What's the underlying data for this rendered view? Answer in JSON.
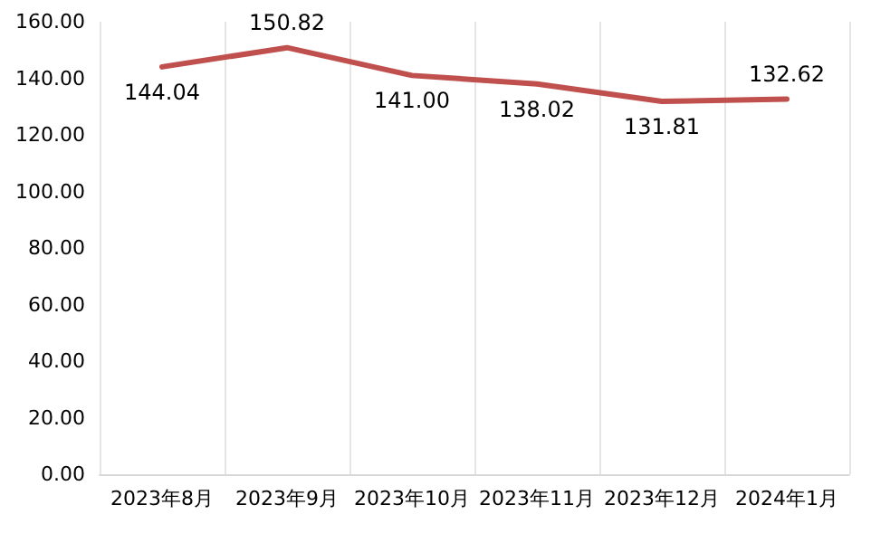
{
  "chart_data": {
    "type": "line",
    "categories": [
      "2023年8月",
      "2023年9月",
      "2023年10月",
      "2023年11月",
      "2023年12月",
      "2024年1月"
    ],
    "series": [
      {
        "color": "#c0504d",
        "values": [
          144.04,
          150.82,
          141.0,
          138.02,
          131.81,
          132.62
        ],
        "value_labels": [
          "144.04",
          "150.82",
          "141.00",
          "138.02",
          "131.81",
          "132.62"
        ]
      }
    ],
    "ylim": [
      0,
      160
    ],
    "yticks": [
      {
        "value": 0,
        "label": "0.00"
      },
      {
        "value": 20,
        "label": "20.00"
      },
      {
        "value": 40,
        "label": "40.00"
      },
      {
        "value": 60,
        "label": "60.00"
      },
      {
        "value": 80,
        "label": "80.00"
      },
      {
        "value": 100,
        "label": "100.00"
      },
      {
        "value": 120,
        "label": "120.00"
      },
      {
        "value": 140,
        "label": "140.00"
      },
      {
        "value": 160,
        "label": "160.00"
      }
    ],
    "grid": "x",
    "marker": "none",
    "line_style": "solid"
  }
}
